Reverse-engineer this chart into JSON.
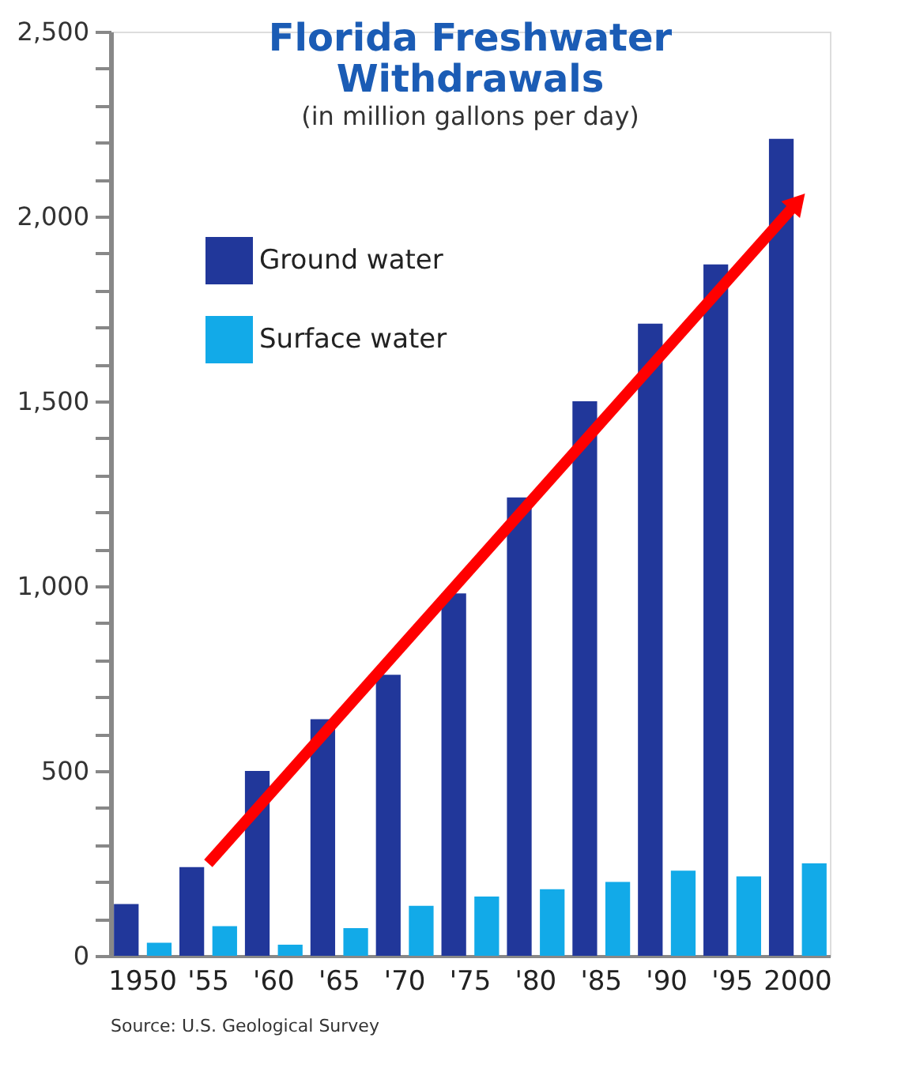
{
  "chart_data": {
    "type": "bar",
    "title": [
      "Florida Freshwater",
      "Withdrawals"
    ],
    "subtitle": "(in million gallons per day)",
    "categories": [
      "1950",
      "'55",
      "'60",
      "'65",
      "'70",
      "'75",
      "'80",
      "'85",
      "'90",
      "'95",
      "2000"
    ],
    "series": [
      {
        "name": "Ground water",
        "color": "#21379a",
        "values": [
          140,
          240,
          500,
          640,
          760,
          980,
          1240,
          1500,
          1710,
          1870,
          2210
        ]
      },
      {
        "name": "Surface water",
        "color": "#12aae8",
        "values": [
          35,
          80,
          30,
          75,
          135,
          160,
          180,
          200,
          230,
          215,
          250
        ]
      },
      {
        "type": "line",
        "color": "#ff0000",
        "values": [
          null,
          250,
          null,
          null,
          null,
          null,
          null,
          null,
          null,
          null,
          2040
        ]
      }
    ],
    "ylim": [
      0,
      2500
    ],
    "yticks": [
      {
        "value": 0,
        "label": "0"
      },
      {
        "value": 100,
        "label": null
      },
      {
        "value": 200,
        "label": null
      },
      {
        "value": 300,
        "label": null
      },
      {
        "value": 400,
        "label": null
      },
      {
        "value": 500,
        "label": "500"
      },
      {
        "value": 600,
        "label": null
      },
      {
        "value": 700,
        "label": null
      },
      {
        "value": 800,
        "label": null
      },
      {
        "value": 900,
        "label": null
      },
      {
        "value": 1000,
        "label": "1,000"
      },
      {
        "value": 1100,
        "label": null
      },
      {
        "value": 1200,
        "label": null
      },
      {
        "value": 1300,
        "label": null
      },
      {
        "value": 1400,
        "label": null
      },
      {
        "value": 1500,
        "label": "1,500"
      },
      {
        "value": 1600,
        "label": null
      },
      {
        "value": 1700,
        "label": null
      },
      {
        "value": 1800,
        "label": null
      },
      {
        "value": 1900,
        "label": null
      },
      {
        "value": 2000,
        "label": "2,000"
      },
      {
        "value": 2100,
        "label": null
      },
      {
        "value": 2200,
        "label": null
      },
      {
        "value": 2300,
        "label": null
      },
      {
        "value": 2400,
        "label": null
      },
      {
        "value": 2500,
        "label": "2,500"
      }
    ],
    "grid": false,
    "legend": "top left",
    "annotations": [
      "Source: U.S. Geological Survey"
    ]
  }
}
